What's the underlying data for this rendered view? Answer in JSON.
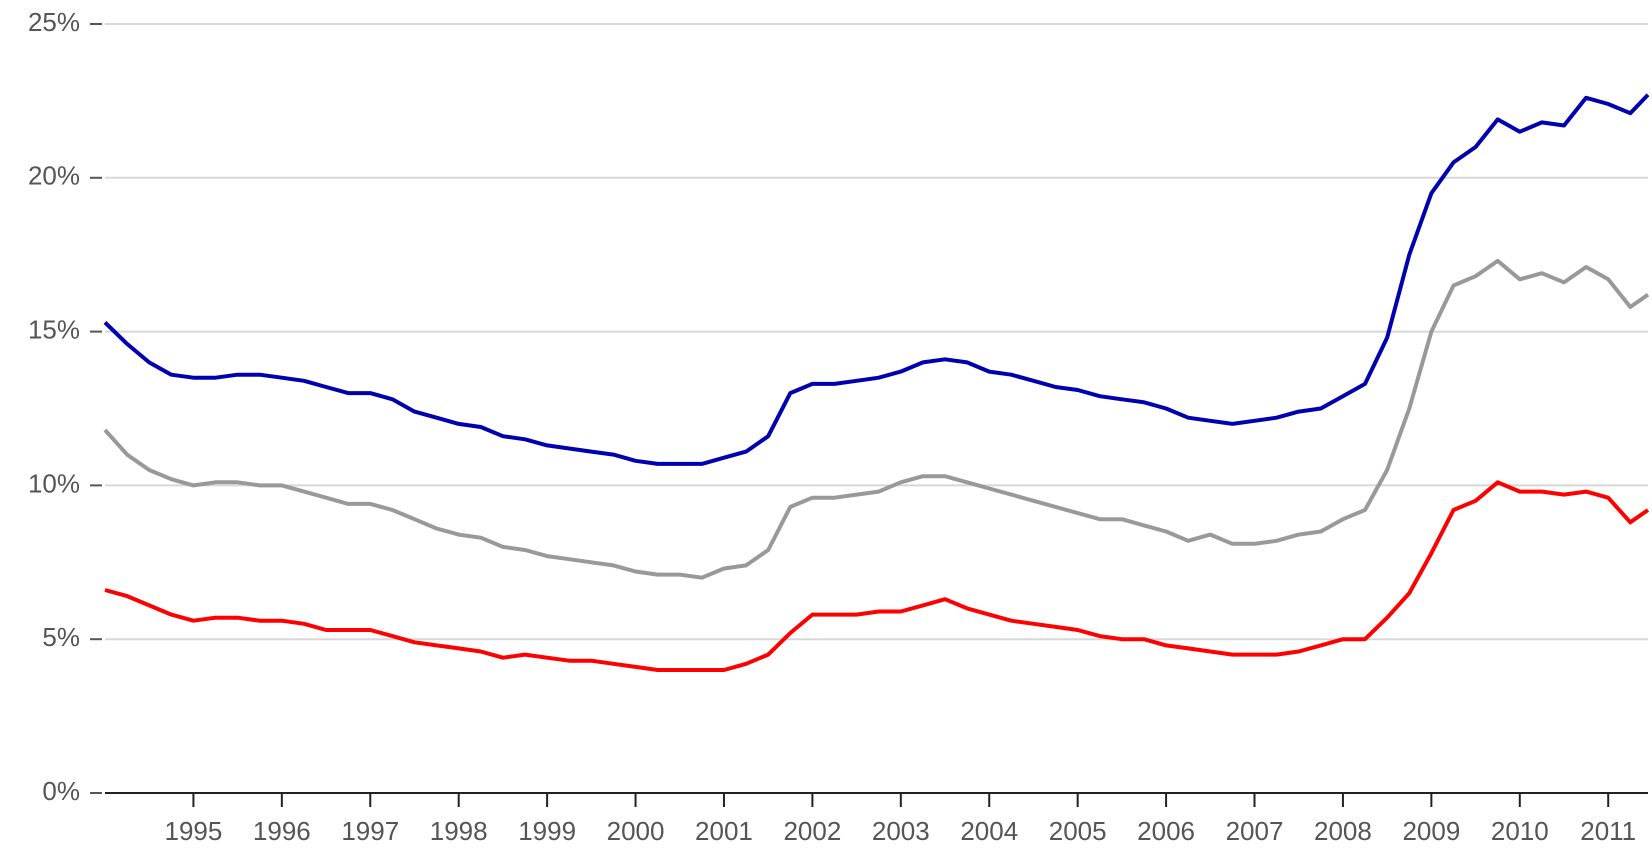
{
  "chart_data": {
    "type": "line",
    "x": [
      1994,
      1994.25,
      1994.5,
      1994.75,
      1995,
      1995.25,
      1995.5,
      1995.75,
      1996,
      1996.25,
      1996.5,
      1996.75,
      1997,
      1997.25,
      1997.5,
      1997.75,
      1998,
      1998.25,
      1998.5,
      1998.75,
      1999,
      1999.25,
      1999.5,
      1999.75,
      2000,
      2000.25,
      2000.5,
      2000.75,
      2001,
      2001.25,
      2001.5,
      2001.75,
      2002,
      2002.25,
      2002.5,
      2002.75,
      2003,
      2003.25,
      2003.5,
      2003.75,
      2004,
      2004.25,
      2004.5,
      2004.75,
      2005,
      2005.25,
      2005.5,
      2005.75,
      2006,
      2006.25,
      2006.5,
      2006.75,
      2007,
      2007.25,
      2007.5,
      2007.75,
      2008,
      2008.25,
      2008.5,
      2008.75,
      2009,
      2009.25,
      2009.5,
      2009.75,
      2010,
      2010.25,
      2010.5,
      2010.75,
      2011,
      2011.25,
      2011.45
    ],
    "series": [
      {
        "color": "#0000b0",
        "values": [
          15.3,
          14.6,
          14.0,
          13.6,
          13.5,
          13.5,
          13.6,
          13.6,
          13.5,
          13.4,
          13.2,
          13.0,
          13.0,
          12.8,
          12.4,
          12.2,
          12.0,
          11.9,
          11.6,
          11.5,
          11.3,
          11.2,
          11.1,
          11.0,
          10.8,
          10.7,
          10.7,
          10.7,
          10.9,
          11.1,
          11.6,
          13.0,
          13.3,
          13.3,
          13.4,
          13.5,
          13.7,
          14.0,
          14.1,
          14.0,
          13.7,
          13.6,
          13.4,
          13.2,
          13.1,
          12.9,
          12.8,
          12.7,
          12.5,
          12.2,
          12.1,
          12.0,
          12.1,
          12.2,
          12.4,
          12.5,
          12.9,
          13.3,
          14.8,
          17.5,
          19.5,
          20.5,
          21.0,
          21.9,
          21.5,
          21.8,
          21.7,
          22.6,
          22.4,
          22.1,
          22.7
        ]
      },
      {
        "color": "#999999",
        "values": [
          11.8,
          11.0,
          10.5,
          10.2,
          10.0,
          10.1,
          10.1,
          10.0,
          10.0,
          9.8,
          9.6,
          9.4,
          9.4,
          9.2,
          8.9,
          8.6,
          8.4,
          8.3,
          8.0,
          7.9,
          7.7,
          7.6,
          7.5,
          7.4,
          7.2,
          7.1,
          7.1,
          7.0,
          7.3,
          7.4,
          7.9,
          9.3,
          9.6,
          9.6,
          9.7,
          9.8,
          10.1,
          10.3,
          10.3,
          10.1,
          9.9,
          9.7,
          9.5,
          9.3,
          9.1,
          8.9,
          8.9,
          8.7,
          8.5,
          8.2,
          8.4,
          8.1,
          8.1,
          8.2,
          8.4,
          8.5,
          8.9,
          9.2,
          10.5,
          12.5,
          15.0,
          16.5,
          16.8,
          17.3,
          16.7,
          16.9,
          16.6,
          17.1,
          16.7,
          15.8,
          16.2
        ]
      },
      {
        "color": "#ff0000",
        "values": [
          6.6,
          6.4,
          6.1,
          5.8,
          5.6,
          5.7,
          5.7,
          5.6,
          5.6,
          5.5,
          5.3,
          5.3,
          5.3,
          5.1,
          4.9,
          4.8,
          4.7,
          4.6,
          4.4,
          4.5,
          4.4,
          4.3,
          4.3,
          4.2,
          4.1,
          4.0,
          4.0,
          4.0,
          4.0,
          4.2,
          4.5,
          5.2,
          5.8,
          5.8,
          5.8,
          5.9,
          5.9,
          6.1,
          6.3,
          6.0,
          5.8,
          5.6,
          5.5,
          5.4,
          5.3,
          5.1,
          5.0,
          5.0,
          4.8,
          4.7,
          4.6,
          4.5,
          4.5,
          4.5,
          4.6,
          4.8,
          5.0,
          5.0,
          5.7,
          6.5,
          7.8,
          9.2,
          9.5,
          10.1,
          9.8,
          9.8,
          9.7,
          9.8,
          9.6,
          8.8,
          9.2
        ]
      }
    ],
    "xlim": [
      1994,
      2011.45
    ],
    "xticks": [
      1995,
      1996,
      1997,
      1998,
      1999,
      2000,
      2001,
      2002,
      2003,
      2004,
      2005,
      2006,
      2007,
      2008,
      2009,
      2010,
      2011
    ],
    "ylim": [
      0,
      25
    ],
    "yticks": [
      {
        "value": 0,
        "label": "0%"
      },
      {
        "value": 5,
        "label": "5%"
      },
      {
        "value": 10,
        "label": "10%"
      },
      {
        "value": 15,
        "label": "15%"
      },
      {
        "value": 20,
        "label": "20%"
      },
      {
        "value": 25,
        "label": "25%"
      }
    ],
    "grid": true
  }
}
